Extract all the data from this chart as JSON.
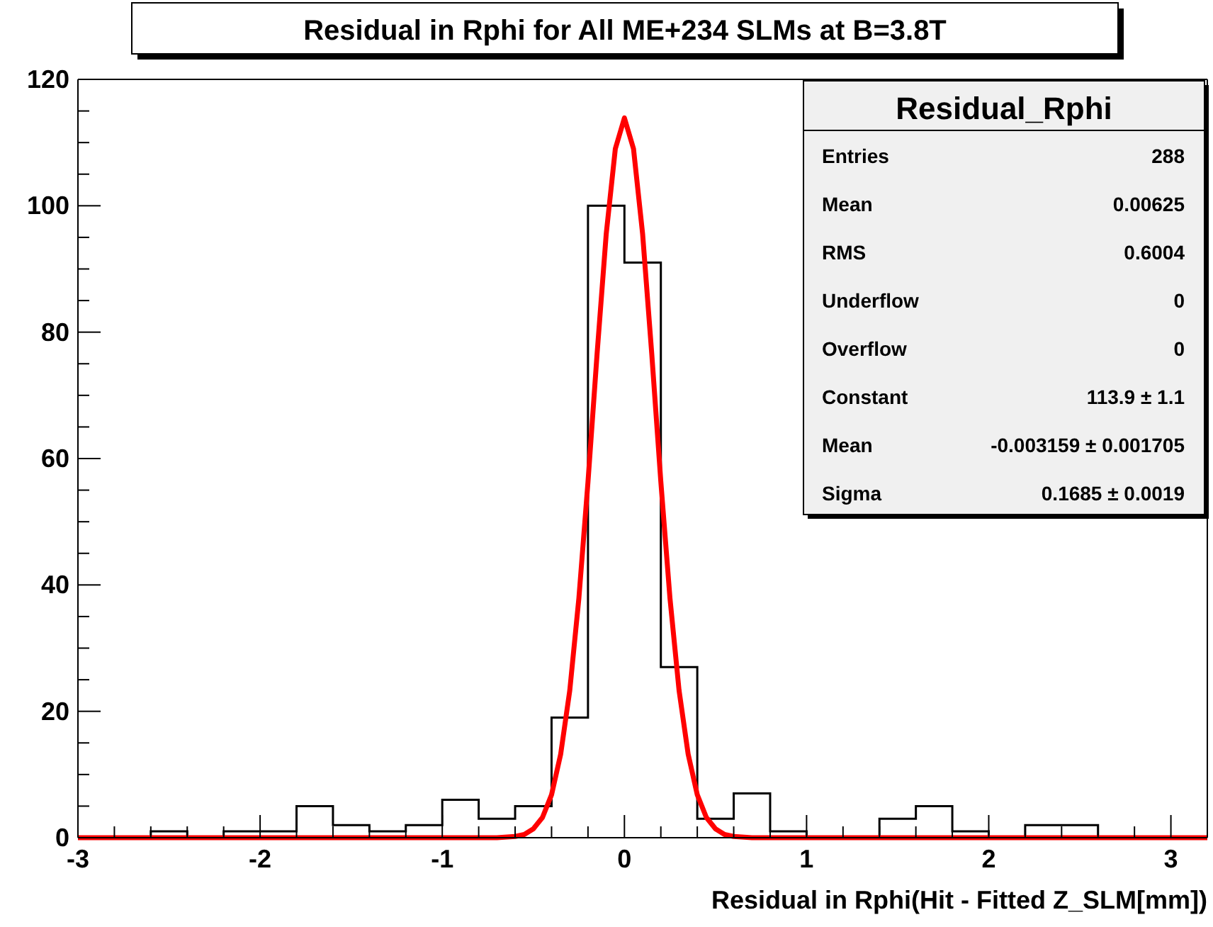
{
  "chart_data": {
    "type": "histogram",
    "title": "Residual in Rphi for All ME+234 SLMs at B=3.8T",
    "xlabel": "Residual in Rphi(Hit - Fitted Z_SLM[mm])",
    "bins": [
      -3,
      -2.8,
      -2.6,
      -2.4,
      -2.2,
      -2,
      -1.8,
      -1.6,
      -1.4,
      -1.2,
      -1,
      -0.8,
      -0.6,
      -0.4,
      -0.2,
      0,
      0.2,
      0.4,
      0.6,
      0.8,
      1,
      1.2,
      1.4,
      1.6,
      1.8,
      2,
      2.2,
      2.4,
      2.6,
      2.8,
      3,
      3.2
    ],
    "values": [
      0,
      0,
      1,
      0,
      1,
      1,
      5,
      2,
      1,
      2,
      6,
      3,
      5,
      19,
      100,
      91,
      27,
      3,
      7,
      1,
      0,
      0,
      3,
      5,
      1,
      0,
      2,
      2,
      0,
      0,
      0
    ],
    "color": "#000000",
    "series": [
      {
        "type": "line",
        "color": "#ff0000",
        "x": [
          -3,
          -0.7,
          -0.6,
          -0.55,
          -0.5,
          -0.45,
          -0.4,
          -0.35,
          -0.3,
          -0.25,
          -0.2,
          -0.15,
          -0.1,
          -0.05,
          0,
          0.05,
          0.1,
          0.15,
          0.2,
          0.25,
          0.3,
          0.35,
          0.4,
          0.45,
          0.5,
          0.55,
          0.6,
          0.7,
          3.2
        ],
        "values": [
          0,
          0,
          0.2,
          0.5,
          1.4,
          3.2,
          6.8,
          13.2,
          23.3,
          37.9,
          56.3,
          76.6,
          95.5,
          109,
          113.9,
          109,
          95.5,
          76.6,
          56.3,
          37.9,
          23.3,
          13.2,
          6.8,
          3.2,
          1.4,
          0.5,
          0.2,
          0,
          0
        ]
      }
    ],
    "xlim": [
      -3,
      3.2
    ],
    "xticks": [
      -3,
      -2,
      -1,
      0,
      1,
      2,
      3
    ],
    "ylim": [
      0,
      120
    ],
    "yticks": [
      0,
      20,
      40,
      60,
      80,
      100,
      120
    ],
    "grid": false,
    "annotations": [
      "Residual_Rphi",
      "Entries",
      "288",
      "Mean",
      "0.00625",
      "RMS",
      "0.6004",
      "Underflow",
      "0",
      "Overflow",
      "0",
      "Constant",
      "113.9 ± 1.1",
      "Mean",
      "-0.003159 ± 0.001705",
      "Sigma",
      "0.1685 ± 0.0019"
    ]
  }
}
